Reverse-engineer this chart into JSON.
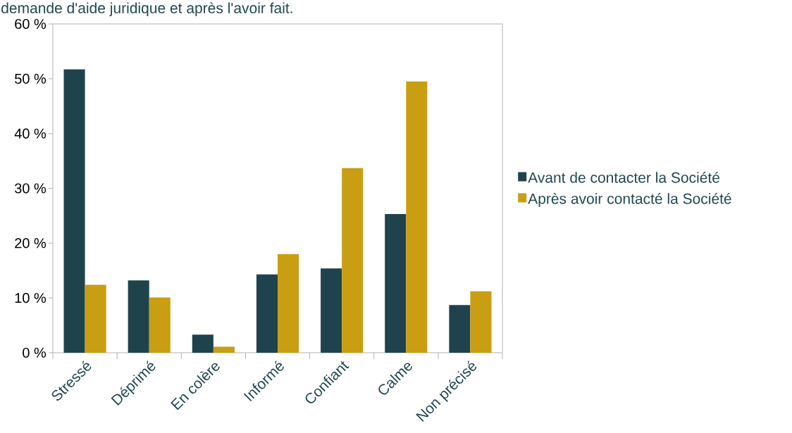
{
  "chart_data": {
    "type": "bar",
    "title": "demande d'aide juridique et après l'avoir fait.",
    "categories": [
      "Stressé",
      "Déprimé",
      "En colère",
      "Informé",
      "Confiant",
      "Calme",
      "Non précisé"
    ],
    "series": [
      {
        "name": "Avant de contacter la Société",
        "color": "#1f434c",
        "values": [
          51.7,
          13.2,
          3.3,
          14.3,
          15.4,
          25.3,
          8.7
        ]
      },
      {
        "name": "Après avoir contacté la Société",
        "color": "#c99e12",
        "values": [
          12.4,
          10.1,
          1.1,
          18.0,
          33.7,
          49.5,
          11.2
        ]
      }
    ],
    "ylim": [
      0,
      60
    ],
    "yticks": [
      {
        "value": 0,
        "label": "0 %"
      },
      {
        "value": 10,
        "label": "10 %"
      },
      {
        "value": 20,
        "label": "20 %"
      },
      {
        "value": 30,
        "label": "30 %"
      },
      {
        "value": 40,
        "label": "40 %"
      },
      {
        "value": 50,
        "label": "50 %"
      },
      {
        "value": 60,
        "label": "60 %"
      }
    ],
    "legend": "right"
  }
}
